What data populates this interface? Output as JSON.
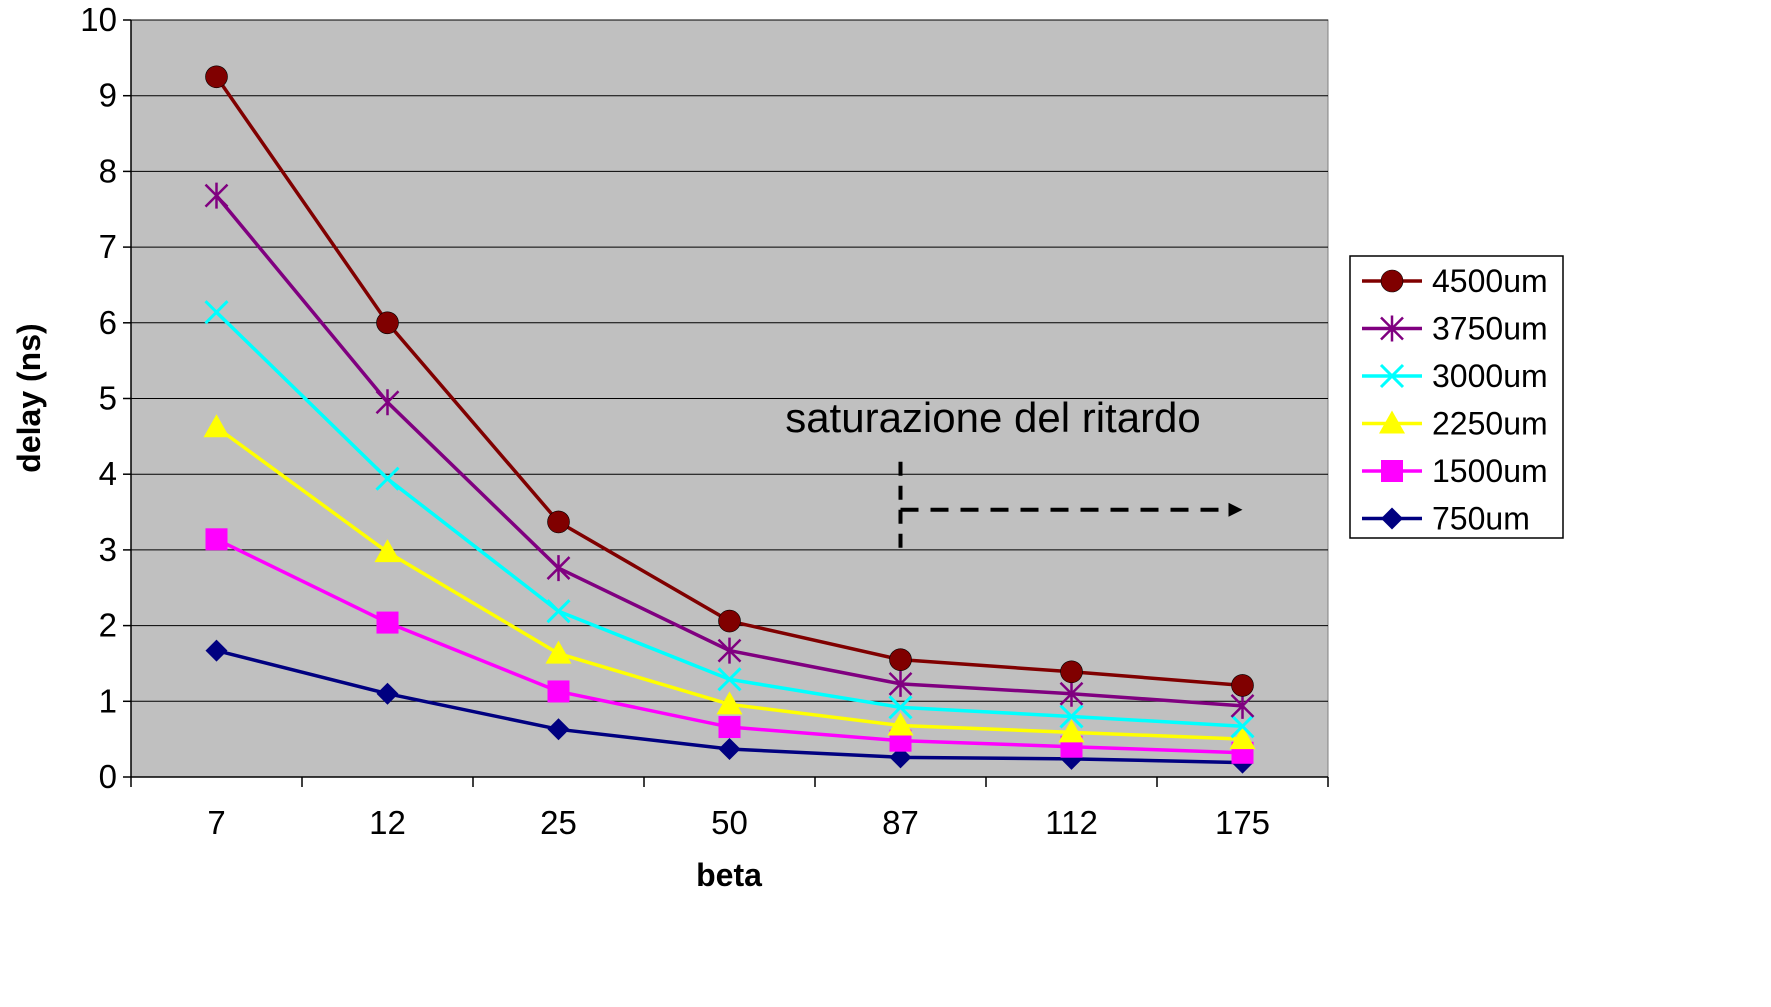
{
  "chart_data": {
    "type": "line",
    "title": "",
    "xlabel": "beta",
    "ylabel": "delay (ns)",
    "categories": [
      "7",
      "12",
      "25",
      "50",
      "87",
      "112",
      "175"
    ],
    "ylim": [
      0,
      10
    ],
    "yticks": [
      "0",
      "1",
      "2",
      "3",
      "4",
      "5",
      "6",
      "7",
      "8",
      "9",
      "10"
    ],
    "grid": true,
    "legend_position": "right",
    "plot_background": "#c0c0c0",
    "series": [
      {
        "name": "4500um",
        "color": "#800000",
        "marker": "circle",
        "values": [
          9.25,
          6.0,
          3.37,
          2.06,
          1.55,
          1.39,
          1.21
        ]
      },
      {
        "name": "3750um",
        "color": "#800080",
        "marker": "star",
        "values": [
          7.68,
          4.95,
          2.76,
          1.67,
          1.23,
          1.1,
          0.94
        ]
      },
      {
        "name": "3000um",
        "color": "#00ffff",
        "marker": "x",
        "values": [
          6.14,
          3.94,
          2.19,
          1.29,
          0.92,
          0.8,
          0.67
        ]
      },
      {
        "name": "2250um",
        "color": "#ffff00",
        "marker": "triangle",
        "values": [
          4.62,
          2.97,
          1.63,
          0.96,
          0.68,
          0.59,
          0.5
        ]
      },
      {
        "name": "1500um",
        "color": "#ff00ff",
        "marker": "square",
        "values": [
          3.14,
          2.04,
          1.13,
          0.66,
          0.48,
          0.4,
          0.32
        ]
      },
      {
        "name": "750um",
        "color": "#000080",
        "marker": "diamond",
        "values": [
          1.67,
          1.1,
          0.63,
          0.37,
          0.26,
          0.24,
          0.19
        ]
      }
    ],
    "annotation": {
      "text": "saturazione del ritardo",
      "marker_start_x": 87,
      "arrow_y": 3.53
    }
  }
}
